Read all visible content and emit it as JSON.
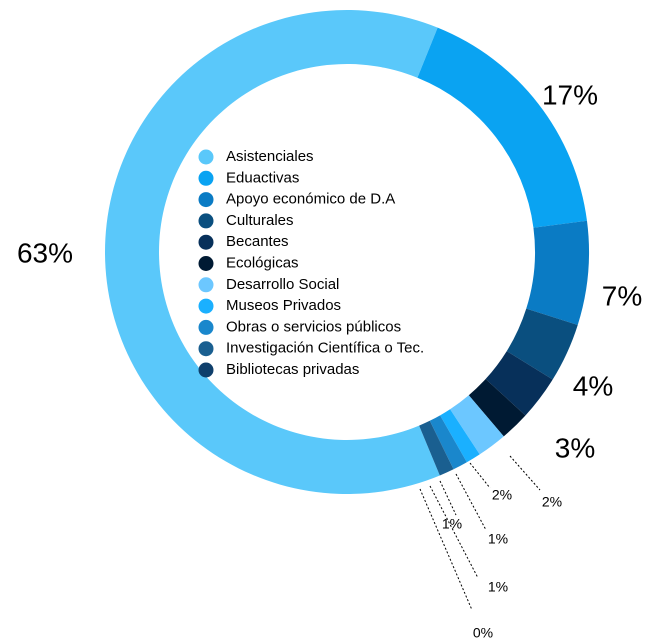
{
  "chart_data": {
    "type": "donut",
    "categories": [
      "Asistenciales",
      "Eduactivas",
      "Apoyo económico de  D.A",
      "Culturales",
      "Becantes",
      "Ecológicas",
      "Desarrollo Social",
      "Museos Privados",
      "Obras o servicios públicos",
      "Investigación Científica o Tec.",
      "Bibliotecas privadas"
    ],
    "values": [
      63,
      17,
      7,
      4,
      3,
      2,
      2,
      1,
      1,
      1,
      0
    ],
    "value_labels": [
      "63%",
      "17%",
      "7%",
      "4%",
      "3%",
      "2%",
      "2%",
      "1%",
      "1%",
      "1%",
      "0%"
    ],
    "colors": [
      "#5ac8fa",
      "#0aa3f2",
      "#0a7bc4",
      "#0a4f7f",
      "#07305a",
      "#001a33",
      "#6cc7ff",
      "#1ab0ff",
      "#1a87cc",
      "#1a5f90",
      "#0f3f6b"
    ],
    "legend": "center"
  }
}
